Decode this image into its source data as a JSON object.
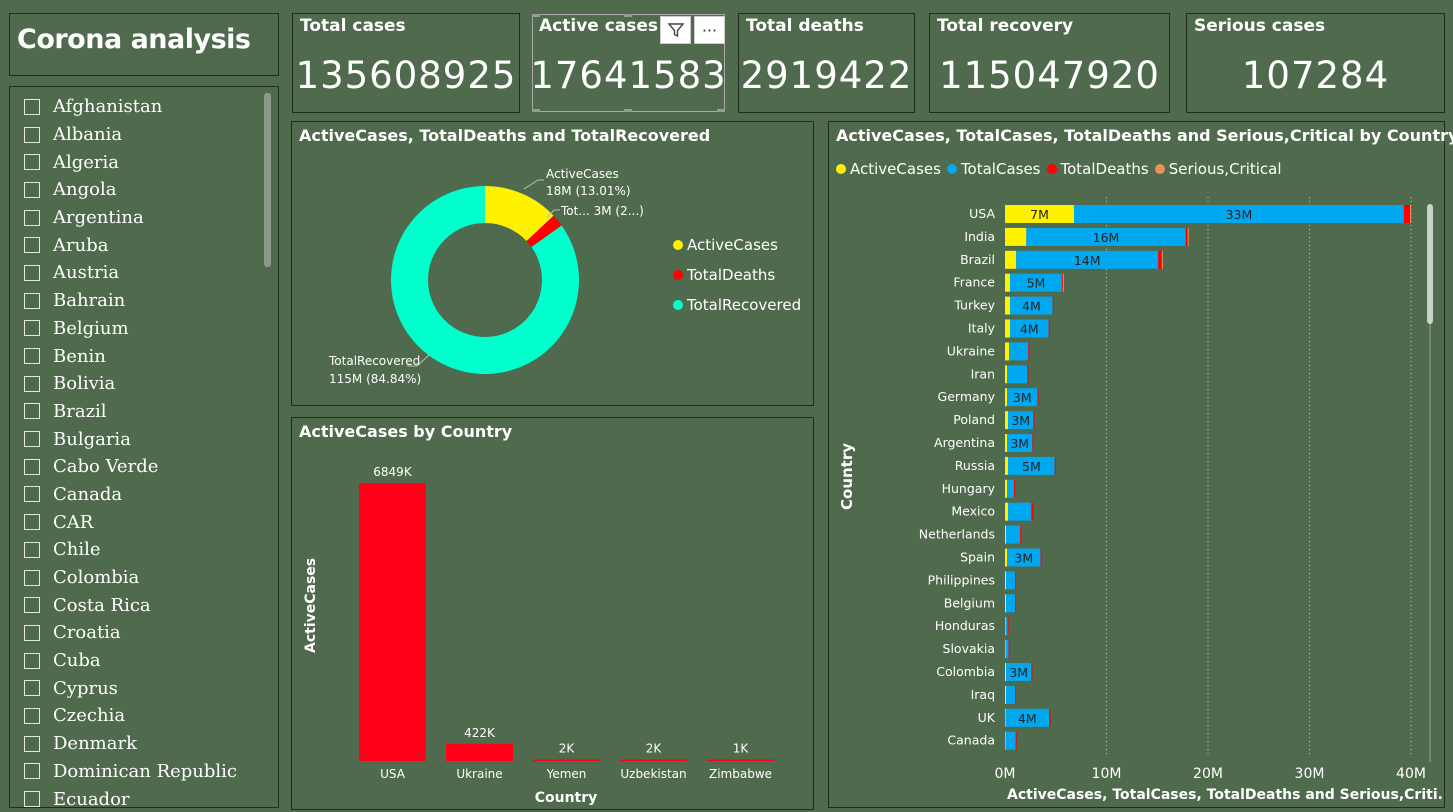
{
  "app": {
    "title": "Corona analysis"
  },
  "slicer": {
    "countries": [
      "Afghanistan",
      "Albania",
      "Algeria",
      "Angola",
      "Argentina",
      "Aruba",
      "Austria",
      "Bahrain",
      "Belgium",
      "Benin",
      "Bolivia",
      "Brazil",
      "Bulgaria",
      "Cabo Verde",
      "Canada",
      "CAR",
      "Chile",
      "Colombia",
      "Costa Rica",
      "Croatia",
      "Cuba",
      "Cyprus",
      "Czechia",
      "Denmark",
      "Dominican Republic",
      "Ecuador"
    ]
  },
  "kpis": [
    {
      "label": "Total cases",
      "value": "135608925"
    },
    {
      "label": "Active cases",
      "value": "17641583"
    },
    {
      "label": "Total deaths",
      "value": "2919422"
    },
    {
      "label": "Total recovery",
      "value": "115047920"
    },
    {
      "label": "Serious cases",
      "value": "107284"
    }
  ],
  "toolbar": {
    "filter_icon": "filter-icon",
    "more_icon": "more-options-icon",
    "more_label": "···"
  },
  "donut": {
    "title": "ActiveCases, TotalDeaths and TotalRecovered",
    "legend": [
      "ActiveCases",
      "TotalDeaths",
      "TotalRecovered"
    ],
    "labels": {
      "active_line1": "ActiveCases",
      "active_line2": "18M (13.01%)",
      "deaths": "Tot... 3M (2...)",
      "recovered_line1": "TotalRecovered",
      "recovered_line2": "115M (84.84%)"
    }
  },
  "active_chart": {
    "title": "ActiveCases by Country",
    "xlabel": "Country",
    "ylabel": "ActiveCases"
  },
  "hbar_chart": {
    "title": "ActiveCases, TotalCases, TotalDeaths and Serious,Critical by Country",
    "legend": [
      "ActiveCases",
      "TotalCases",
      "TotalDeaths",
      "Serious,Critical"
    ],
    "ylabel": "Country",
    "xlabel": "ActiveCases, TotalCases, TotalDeaths and Serious,Criti..."
  },
  "colors": {
    "background": "#4f6a4c",
    "active": "#fff200",
    "total": "#00a8f0",
    "deaths": "#ff0000",
    "serious": "#e8915a",
    "recovered": "#00ffcc",
    "bar_red": "#ff0019"
  },
  "chart_data": [
    {
      "type": "pie",
      "title": "ActiveCases, TotalDeaths and TotalRecovered",
      "categories": [
        "ActiveCases",
        "TotalDeaths",
        "TotalRecovered"
      ],
      "values": [
        17641583,
        2919422,
        115047920
      ],
      "value_labels": [
        "18M",
        "3M",
        "115M"
      ],
      "percent_labels": [
        "13.01%",
        "2...",
        "84.84%"
      ]
    },
    {
      "type": "bar",
      "title": "ActiveCases by Country",
      "xlabel": "Country",
      "ylabel": "ActiveCases",
      "categories": [
        "USA",
        "Ukraine",
        "Yemen",
        "Uzbekistan",
        "Zimbabwe"
      ],
      "values": [
        6849,
        422,
        2,
        2,
        1
      ],
      "data_labels": [
        "6849K",
        "422K",
        "2K",
        "2K",
        "1K"
      ],
      "unit": "K"
    },
    {
      "type": "bar",
      "orientation": "horizontal",
      "stacked": true,
      "title": "ActiveCases, TotalCases, TotalDeaths and Serious,Critical by Country",
      "xlabel": "ActiveCases, TotalCases, TotalDeaths and Serious,Criti...",
      "ylabel": "Country",
      "xlim": [
        0,
        40
      ],
      "x_unit": "M",
      "x_ticks": [
        "0M",
        "10M",
        "20M",
        "30M",
        "40M"
      ],
      "categories": [
        "USA",
        "India",
        "Brazil",
        "France",
        "Turkey",
        "Italy",
        "Ukraine",
        "Iran",
        "Germany",
        "Poland",
        "Argentina",
        "Russia",
        "Hungary",
        "Mexico",
        "Netherlands",
        "Spain",
        "Philippines",
        "Belgium",
        "Honduras",
        "Slovakia",
        "Colombia",
        "Iraq",
        "UK",
        "Canada"
      ],
      "series": [
        {
          "name": "ActiveCases",
          "values": [
            6.8,
            2.1,
            1.1,
            0.5,
            0.5,
            0.5,
            0.4,
            0.2,
            0.2,
            0.3,
            0.2,
            0.3,
            0.2,
            0.3,
            0.1,
            0.2,
            0.1,
            0.1,
            0.05,
            0.05,
            0.1,
            0.1,
            0.05,
            0.05
          ]
        },
        {
          "name": "TotalCases",
          "values": [
            32.5,
            15.7,
            14.0,
            5.1,
            4.2,
            3.8,
            1.9,
            2.0,
            3.0,
            2.5,
            2.5,
            4.6,
            0.7,
            2.3,
            1.4,
            3.3,
            0.9,
            0.9,
            0.2,
            0.3,
            2.5,
            0.9,
            4.3,
            1.0
          ]
        },
        {
          "name": "TotalDeaths",
          "values": [
            0.6,
            0.2,
            0.35,
            0.1,
            0.05,
            0.1,
            0.04,
            0.06,
            0.08,
            0.06,
            0.06,
            0.1,
            0.02,
            0.2,
            0.02,
            0.08,
            0.02,
            0.02,
            0.01,
            0.01,
            0.06,
            0.02,
            0.13,
            0.02
          ]
        },
        {
          "name": "Serious,Critical",
          "values": [
            0.01,
            0.01,
            0.01,
            0.01,
            0.0,
            0.0,
            0.0,
            0.0,
            0.0,
            0.0,
            0.0,
            0.0,
            0.0,
            0.0,
            0.0,
            0.0,
            0.0,
            0.0,
            0.0,
            0.0,
            0.0,
            0.0,
            0.0,
            0.0
          ]
        }
      ],
      "data_labels": {
        "ActiveCases": [
          "7M",
          "",
          "",
          "",
          "",
          "",
          "",
          "",
          "",
          "",
          "",
          "",
          "",
          "",
          "",
          "",
          "",
          "",
          "",
          "",
          "",
          "",
          "",
          ""
        ],
        "TotalCases": [
          "33M",
          "16M",
          "14M",
          "5M",
          "4M",
          "4M",
          "",
          "",
          "3M",
          "3M",
          "3M",
          "5M",
          "",
          "",
          "",
          "3M",
          "",
          "",
          "",
          "",
          "3M",
          "",
          "4M",
          ""
        ]
      }
    }
  ]
}
